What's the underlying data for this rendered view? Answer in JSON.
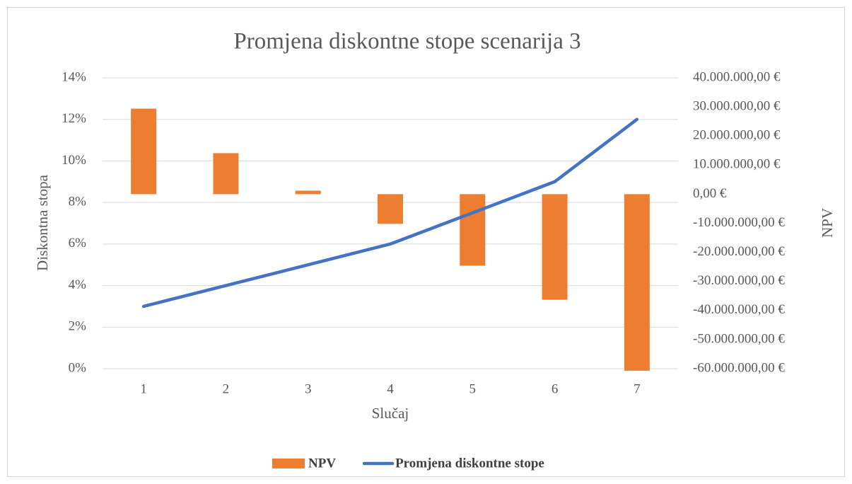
{
  "chart_data": {
    "type": "combo",
    "title": "Promjena diskontne stope scenarija 3",
    "x_label": "Slučaj",
    "y_label": "Diskontna stopa",
    "y2_label": "NPV",
    "categories": [
      "1",
      "2",
      "3",
      "4",
      "5",
      "6",
      "7"
    ],
    "series": [
      {
        "name": "NPV",
        "type": "bar",
        "axis": "y2",
        "color": "#ed7d31",
        "values": [
          29400000,
          14100000,
          1200000,
          -10200000,
          -24600000,
          -36300000,
          -60700000
        ]
      },
      {
        "name": "Promjena diskontne stope",
        "type": "line",
        "color": "#4472c4",
        "values": [
          3,
          4,
          5,
          6,
          7.5,
          9,
          12
        ]
      }
    ],
    "ylim": [
      0,
      14
    ],
    "yticks": [
      {
        "value": 0,
        "label": "0%"
      },
      {
        "value": 2,
        "label": "2%"
      },
      {
        "value": 4,
        "label": "4%"
      },
      {
        "value": 6,
        "label": "6%"
      },
      {
        "value": 8,
        "label": "8%"
      },
      {
        "value": 10,
        "label": "10%"
      },
      {
        "value": 12,
        "label": "12%"
      },
      {
        "value": 14,
        "label": "14%"
      }
    ],
    "y2lim": [
      -60000000,
      40000000
    ],
    "y2ticks": [
      {
        "value": -60000000,
        "label": "-60.000.000,00 €"
      },
      {
        "value": -50000000,
        "label": "-50.000.000,00 €"
      },
      {
        "value": -40000000,
        "label": "-40.000.000,00 €"
      },
      {
        "value": -30000000,
        "label": "-30.000.000,00 €"
      },
      {
        "value": -20000000,
        "label": "-20.000.000,00 €"
      },
      {
        "value": -10000000,
        "label": "-10.000.000,00 €"
      },
      {
        "value": 0,
        "label": "0,00 €"
      },
      {
        "value": 10000000,
        "label": "10.000.000,00 €"
      },
      {
        "value": 20000000,
        "label": "20.000.000,00 €"
      },
      {
        "value": 30000000,
        "label": "30.000.000,00 €"
      },
      {
        "value": 40000000,
        "label": "40.000.000,00 €"
      }
    ],
    "grid": true,
    "legend": "bottom"
  }
}
